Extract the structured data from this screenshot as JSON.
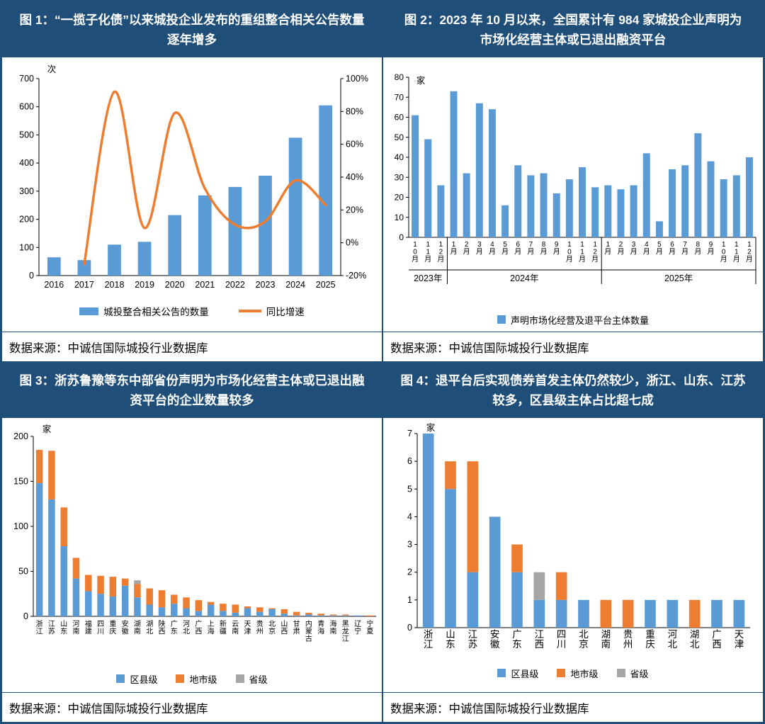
{
  "theme": {
    "header_bg": "#1F4E79",
    "border": "#1F4E79",
    "bar_blue": "#5B9BD5",
    "orange": "#ED7D31",
    "gray": "#A6A6A6",
    "axis": "#000000"
  },
  "figures": [
    {
      "title": "图 1：“一揽子化债”以来城投企业发布的重组整合相关公告数量逐年增多",
      "source": "数据来源：中诚信国际城投行业数据库",
      "chart_data": {
        "type": "bar",
        "subtype": "combo-bar-line-dual-axis",
        "categories": [
          "2016",
          "2017",
          "2018",
          "2019",
          "2020",
          "2021",
          "2022",
          "2023",
          "2024",
          "2025"
        ],
        "bar_series": {
          "name": "城投整合相关公告的数量",
          "color": "#5B9BD5",
          "values": [
            65,
            55,
            110,
            120,
            215,
            285,
            315,
            355,
            490,
            605
          ]
        },
        "line_series": {
          "name": "同比增速",
          "color": "#ED7D31",
          "start_index": 1,
          "values": [
            -13,
            92,
            9,
            79,
            33,
            11,
            13,
            38,
            23
          ]
        },
        "y_left": {
          "unit": "次",
          "min": 0,
          "max": 700,
          "step": 100
        },
        "y_right": {
          "min": -20,
          "max": 100,
          "step": 20,
          "suffix": "%"
        }
      }
    },
    {
      "title": "图 2：2023 年 10 月以来，全国累计有 984 家城投企业声明为市场化经营主体或已退出融资平台",
      "source": "数据来源：中诚信国际城投行业数据库",
      "chart_data": {
        "type": "bar",
        "unit": "家",
        "legend": "声明市场化经营及退平台主体数量",
        "bar_color": "#5B9BD5",
        "y": {
          "min": 0,
          "max": 80,
          "step": 10
        },
        "groups": [
          {
            "label": "2023年",
            "months": [
              "10月",
              "11月",
              "12月"
            ],
            "values": [
              61,
              49,
              26
            ]
          },
          {
            "label": "2024年",
            "months": [
              "1月",
              "2月",
              "3月",
              "4月",
              "5月",
              "6月",
              "7月",
              "8月",
              "9月",
              "10月",
              "11月",
              "12月"
            ],
            "values": [
              73,
              32,
              67,
              64,
              16,
              36,
              31,
              32,
              22,
              29,
              35,
              25
            ]
          },
          {
            "label": "2025年",
            "months": [
              "1月",
              "2月",
              "3月",
              "4月",
              "5月",
              "6月",
              "7月",
              "8月",
              "9月",
              "10月",
              "11月",
              "12月"
            ],
            "values": [
              26,
              24,
              26,
              42,
              8,
              34,
              36,
              52,
              38,
              29,
              31,
              40
            ]
          }
        ]
      }
    },
    {
      "title": "图 3：浙苏鲁豫等东中部省份声明为市场化经营主体或已退出融资平台的企业数量较多",
      "source": "数据来源：中诚信国际城投行业数据库",
      "chart_data": {
        "type": "bar",
        "subtype": "stacked",
        "unit": "家",
        "y": {
          "min": 0,
          "max": 200,
          "step": 50
        },
        "categories": [
          "浙江",
          "江苏",
          "山东",
          "河南",
          "福建",
          "四川",
          "重庆",
          "安徽",
          "湖南",
          "湖北",
          "陕西",
          "广东",
          "河北",
          "广西",
          "上海",
          "新疆",
          "云南",
          "天津",
          "贵州",
          "北京",
          "山西",
          "甘肃",
          "内蒙古",
          "青海",
          "海南",
          "黑龙江",
          "辽宁",
          "宁夏"
        ],
        "series": [
          {
            "name": "区县级",
            "color": "#5B9BD5",
            "values": [
              148,
              130,
              78,
              42,
              28,
              25,
              22,
              34,
              21,
              13,
              10,
              14,
              9,
              6,
              13,
              6,
              4,
              9,
              5,
              8,
              3,
              1,
              2,
              1,
              1,
              1,
              1,
              0
            ]
          },
          {
            "name": "地市级",
            "color": "#ED7D31",
            "values": [
              37,
              54,
              43,
              23,
              18,
              20,
              22,
              8,
              15,
              18,
              19,
              10,
              12,
              12,
              3,
              8,
              9,
              2,
              5,
              1,
              5,
              4,
              2,
              2,
              1,
              1,
              0,
              1
            ]
          },
          {
            "name": "省级",
            "color": "#A6A6A6",
            "values": [
              0,
              0,
              0,
              0,
              0,
              0,
              0,
              0,
              4,
              0,
              0,
              0,
              0,
              0,
              0,
              0,
              0,
              0,
              0,
              0,
              0,
              0,
              0,
              0,
              0,
              0,
              0,
              0
            ]
          }
        ]
      }
    },
    {
      "title": "图 4：退平台后实现债券首发主体仍然较少，浙江、山东、江苏较多，区县级主体占比超七成",
      "source": "数据来源：中诚信国际城投行业数据库",
      "chart_data": {
        "type": "bar",
        "subtype": "stacked",
        "unit": "家",
        "y": {
          "min": 0,
          "max": 7,
          "step": 1
        },
        "categories": [
          "浙江",
          "山东",
          "江苏",
          "安徽",
          "广东",
          "江西",
          "四川",
          "北京",
          "湖南",
          "贵州",
          "重庆",
          "河北",
          "湖北",
          "广西",
          "天津"
        ],
        "series": [
          {
            "name": "区县级",
            "color": "#5B9BD5",
            "values": [
              7,
              5,
              2,
              4,
              2,
              1,
              1,
              1,
              0,
              0,
              1,
              1,
              0,
              1,
              1
            ]
          },
          {
            "name": "地市级",
            "color": "#ED7D31",
            "values": [
              0,
              1,
              4,
              0,
              1,
              0,
              1,
              0,
              1,
              1,
              0,
              0,
              1,
              0,
              0
            ]
          },
          {
            "name": "省级",
            "color": "#A6A6A6",
            "values": [
              0,
              0,
              0,
              0,
              0,
              1,
              0,
              0,
              0,
              0,
              0,
              0,
              0,
              0,
              0
            ]
          }
        ]
      }
    }
  ]
}
